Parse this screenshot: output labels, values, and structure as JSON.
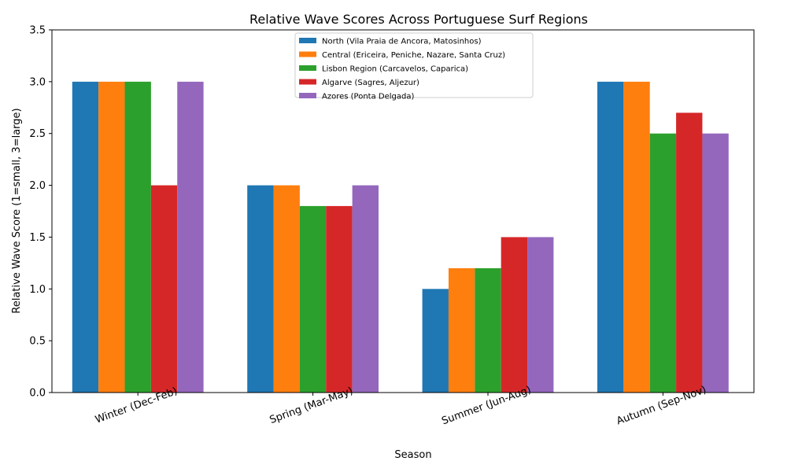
{
  "chart_data": {
    "type": "bar",
    "title": "Relative Wave Scores Across Portuguese Surf Regions",
    "xlabel": "Season",
    "ylabel": "Relative Wave Score (1=small, 3=large)",
    "categories": [
      "Winter (Dec-Feb)",
      "Spring (Mar-May)",
      "Summer (Jun-Aug)",
      "Autumn (Sep-Nov)"
    ],
    "ylim": [
      0,
      3.5
    ],
    "yticks": [
      "0.0",
      "0.5",
      "1.0",
      "1.5",
      "2.0",
      "2.5",
      "3.0",
      "3.5"
    ],
    "grid": false,
    "legend_position": "top-center",
    "series": [
      {
        "name": "North (Vila Praia de Ancora, Matosinhos)",
        "color": "#1f77b4",
        "values": [
          3.0,
          2.0,
          1.0,
          3.0
        ]
      },
      {
        "name": "Central (Ericeira, Peniche, Nazare, Santa Cruz)",
        "color": "#ff7f0e",
        "values": [
          3.0,
          2.0,
          1.2,
          3.0
        ]
      },
      {
        "name": "Lisbon Region (Carcavelos, Caparica)",
        "color": "#2ca02c",
        "values": [
          3.0,
          1.8,
          1.2,
          2.5
        ]
      },
      {
        "name": "Algarve (Sagres, Aljezur)",
        "color": "#d62728",
        "values": [
          2.0,
          1.8,
          1.5,
          2.7
        ]
      },
      {
        "name": "Azores (Ponta Delgada)",
        "color": "#9467bd",
        "values": [
          3.0,
          2.0,
          1.5,
          2.5
        ]
      }
    ]
  }
}
